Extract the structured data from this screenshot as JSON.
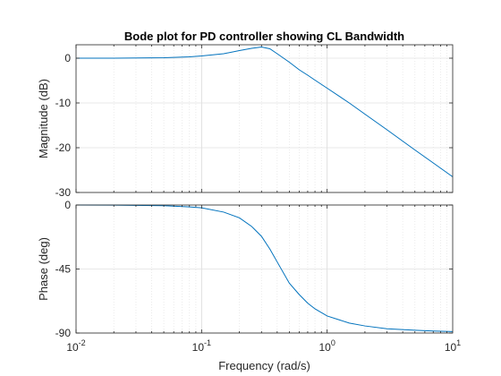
{
  "chart_data": [
    {
      "type": "line",
      "title": "Bode plot for PD controller showing CL Bandwidth",
      "xlabel": "",
      "ylabel": "Magnitude (dB)",
      "xscale": "log",
      "xlim": [
        0.01,
        10
      ],
      "ylim": [
        -30,
        3
      ],
      "yticks": [
        0,
        -10,
        -20,
        -30
      ],
      "ytick_labels": [
        "0",
        "-10",
        "-20",
        "-30"
      ],
      "grid": true,
      "color": "#0072bd",
      "series": [
        {
          "x": [
            0.01,
            0.02,
            0.05,
            0.08,
            0.1,
            0.15,
            0.2,
            0.25,
            0.3,
            0.35,
            0.4,
            0.5,
            0.6,
            0.7,
            0.8,
            1.0,
            1.5,
            2.0,
            3.0,
            5.0,
            7.0,
            10.0
          ],
          "y": [
            0.0,
            0.0,
            0.1,
            0.3,
            0.5,
            1.0,
            1.7,
            2.2,
            2.5,
            2.1,
            1.0,
            -0.9,
            -2.6,
            -3.8,
            -4.9,
            -6.7,
            -10.0,
            -12.5,
            -16.0,
            -20.5,
            -23.4,
            -26.5
          ]
        }
      ]
    },
    {
      "type": "line",
      "title": "",
      "xlabel": "Frequency  (rad/s)",
      "ylabel": "Phase (deg)",
      "xscale": "log",
      "xlim": [
        0.01,
        10
      ],
      "ylim": [
        -90,
        0
      ],
      "xticks": [
        0.01,
        0.1,
        1,
        10
      ],
      "xtick_labels": [
        {
          "base": "10",
          "exp": "-2"
        },
        {
          "base": "10",
          "exp": "-1"
        },
        {
          "base": "10",
          "exp": "0"
        },
        {
          "base": "10",
          "exp": "1"
        }
      ],
      "yticks": [
        0,
        -45,
        -90
      ],
      "ytick_labels": [
        "0",
        "-45",
        "-90"
      ],
      "grid": true,
      "color": "#0072bd",
      "series": [
        {
          "x": [
            0.01,
            0.02,
            0.05,
            0.08,
            0.1,
            0.15,
            0.2,
            0.25,
            0.3,
            0.35,
            0.4,
            0.5,
            0.6,
            0.7,
            0.8,
            1.0,
            1.5,
            2.0,
            3.0,
            5.0,
            7.0,
            10.0
          ],
          "y": [
            0.0,
            -0.1,
            -0.5,
            -1.3,
            -2.0,
            -5.0,
            -9.0,
            -15.0,
            -22.0,
            -31.0,
            -40.0,
            -55.0,
            -63.0,
            -69.0,
            -73.0,
            -78.0,
            -83.0,
            -85.0,
            -87.0,
            -88.0,
            -88.6,
            -89.0
          ]
        }
      ]
    }
  ]
}
